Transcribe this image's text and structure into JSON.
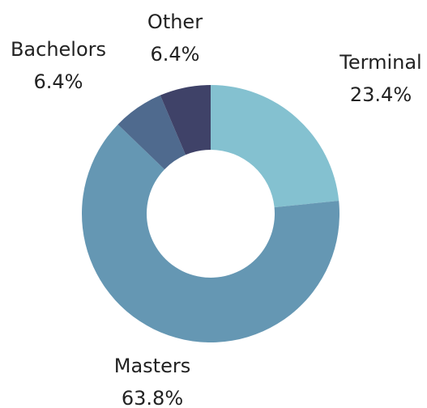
{
  "chart_data": {
    "type": "donut",
    "categories": [
      "Terminal",
      "Masters",
      "Bachelors",
      "Other"
    ],
    "values": [
      23.4,
      63.8,
      6.4,
      6.4
    ],
    "value_labels": [
      "23.4%",
      "63.8%",
      "6.4%",
      "6.4%"
    ],
    "colors": [
      "#84c1d0",
      "#6597b3",
      "#4f6a8e",
      "#3f4268"
    ]
  }
}
